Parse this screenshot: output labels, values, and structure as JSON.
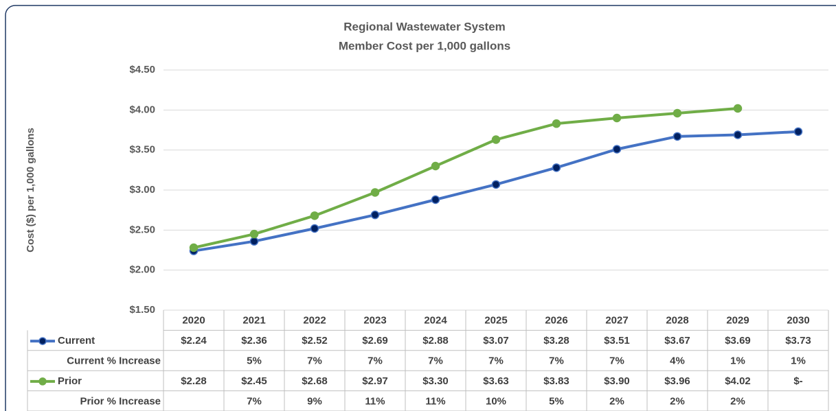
{
  "chart_data": {
    "type": "line",
    "title": [
      "Regional Wastewater System",
      "Member Cost per 1,000 gallons"
    ],
    "y_label": "Cost ($) per 1,000 gallons",
    "categories": [
      "2020",
      "2021",
      "2022",
      "2023",
      "2024",
      "2025",
      "2026",
      "2027",
      "2028",
      "2029",
      "2030"
    ],
    "series": [
      {
        "name": "Current",
        "color": "#4472c4",
        "marker_color": "#002060",
        "values": [
          2.24,
          2.36,
          2.52,
          2.69,
          2.88,
          3.07,
          3.28,
          3.51,
          3.67,
          3.69,
          3.73
        ],
        "value_labels": [
          "$2.24",
          "$2.36",
          "$2.52",
          "$2.69",
          "$2.88",
          "$3.07",
          "$3.28",
          "$3.51",
          "$3.67",
          "$3.69",
          "$3.73"
        ]
      },
      {
        "name": "Prior",
        "color": "#70ad47",
        "marker_color": "#70ad47",
        "values": [
          2.28,
          2.45,
          2.68,
          2.97,
          3.3,
          3.63,
          3.83,
          3.9,
          3.96,
          4.02,
          null
        ],
        "value_labels": [
          "$2.28",
          "$2.45",
          "$2.68",
          "$2.97",
          "$3.30",
          "$3.63",
          "$3.83",
          "$3.90",
          "$3.96",
          "$4.02",
          "$-"
        ]
      }
    ],
    "increase_rows": [
      {
        "name": "Current % Increase",
        "labels": [
          null,
          "5%",
          "7%",
          "7%",
          "7%",
          "7%",
          "7%",
          "7%",
          "4%",
          "1%",
          "1%"
        ]
      },
      {
        "name": "Prior % Increase",
        "labels": [
          null,
          "7%",
          "9%",
          "11%",
          "11%",
          "10%",
          "5%",
          "2%",
          "2%",
          "2%",
          null
        ]
      }
    ],
    "ylim": [
      1.5,
      4.5
    ],
    "yticks": [
      {
        "value": 1.5,
        "label": "$1.50"
      },
      {
        "value": 2.0,
        "label": "$2.00"
      },
      {
        "value": 2.5,
        "label": "$2.50"
      },
      {
        "value": 3.0,
        "label": "$3.00"
      },
      {
        "value": 3.5,
        "label": "$3.50"
      },
      {
        "value": 4.0,
        "label": "$4.00"
      },
      {
        "value": 4.5,
        "label": "$4.50"
      }
    ],
    "grid": true
  }
}
